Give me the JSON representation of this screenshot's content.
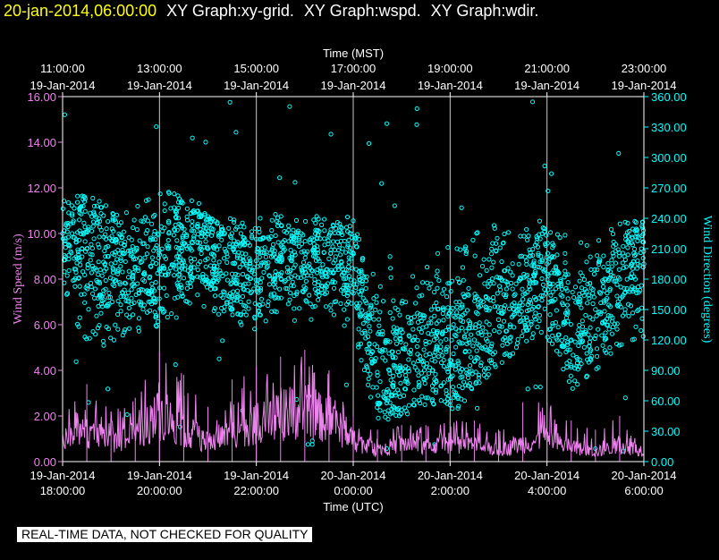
{
  "header": {
    "datetime": "20-jan-2014,06:00:00",
    "titles": [
      "XY Graph:xy-grid.",
      "XY Graph:wspd.",
      "XY Graph:wdir."
    ]
  },
  "notice": "REAL-TIME DATA, NOT CHECKED FOR QUALITY",
  "colors": {
    "background": "#000000",
    "header_date": "#ffff00",
    "header_text": "#ffffff",
    "wind_speed": "#ee82ee",
    "wind_direction": "#00ffff",
    "grid": "#c8c8c8",
    "axes": "#ffffff"
  },
  "chart_data": {
    "type": "scatter",
    "grid": true,
    "top_axis": {
      "title": "Time (MST)",
      "ticks": [
        {
          "time": "11:00:00",
          "date": "19-Jan-2014"
        },
        {
          "time": "13:00:00",
          "date": "19-Jan-2014"
        },
        {
          "time": "15:00:00",
          "date": "19-Jan-2014"
        },
        {
          "time": "17:00:00",
          "date": "19-Jan-2014"
        },
        {
          "time": "19:00:00",
          "date": "19-Jan-2014"
        },
        {
          "time": "21:00:00",
          "date": "19-Jan-2014"
        },
        {
          "time": "23:00:00",
          "date": "19-Jan-2014"
        }
      ]
    },
    "bottom_axis": {
      "title": "Time (UTC)",
      "ticks": [
        {
          "date": "19-Jan-2014",
          "time": "18:00:00"
        },
        {
          "date": "19-Jan-2014",
          "time": "20:00:00"
        },
        {
          "date": "19-Jan-2014",
          "time": "22:00:00"
        },
        {
          "date": "20-Jan-2014",
          "time": "0:00:00"
        },
        {
          "date": "20-Jan-2014",
          "time": "2:00:00"
        },
        {
          "date": "20-Jan-2014",
          "time": "4:00:00"
        },
        {
          "date": "20-Jan-2014",
          "time": "6:00:00"
        }
      ],
      "xlim_utc": [
        "2014-01-19T18:00:00",
        "2014-01-20T06:00:00"
      ]
    },
    "left_axis": {
      "title": "Wind Speed (m/s)",
      "ylim": [
        0,
        16
      ],
      "ticks": [
        "0.00",
        "2.00",
        "4.00",
        "6.00",
        "8.00",
        "10.00",
        "12.00",
        "14.00",
        "16.00"
      ]
    },
    "right_axis": {
      "title": "Wind Direction (degrees)",
      "ylim": [
        0,
        360
      ],
      "ticks": [
        "0.00",
        "30.00",
        "60.00",
        "90.00",
        "120.00",
        "150.00",
        "180.00",
        "210.00",
        "240.00",
        "270.00",
        "300.00",
        "330.00",
        "360.00"
      ]
    },
    "series": [
      {
        "style": "line",
        "axis": "left",
        "x": [
          "2014-01-19T18:00:00",
          "2014-01-19T18:30:00",
          "2014-01-19T19:00:00",
          "2014-01-19T19:30:00",
          "2014-01-19T20:00:00",
          "2014-01-19T20:30:00",
          "2014-01-19T21:00:00",
          "2014-01-19T21:30:00",
          "2014-01-19T22:00:00",
          "2014-01-19T22:30:00",
          "2014-01-19T23:00:00",
          "2014-01-19T23:30:00",
          "2014-01-20T00:00:00",
          "2014-01-20T00:30:00",
          "2014-01-20T01:00:00",
          "2014-01-20T01:30:00",
          "2014-01-20T02:00:00",
          "2014-01-20T02:30:00",
          "2014-01-20T03:00:00",
          "2014-01-20T03:30:00",
          "2014-01-20T04:00:00",
          "2014-01-20T04:30:00",
          "2014-01-20T05:00:00",
          "2014-01-20T05:30:00",
          "2014-01-20T06:00:00"
        ],
        "y": [
          1.2,
          1.6,
          1.1,
          1.4,
          2.6,
          1.8,
          1.0,
          1.6,
          2.0,
          2.4,
          2.8,
          2.2,
          1.2,
          0.6,
          1.0,
          0.8,
          1.0,
          0.9,
          0.6,
          1.0,
          1.2,
          0.8,
          0.5,
          0.9,
          0.6
        ],
        "y_peak": [
          2.6,
          3.4,
          2.2,
          2.8,
          4.8,
          3.8,
          2.4,
          3.6,
          4.2,
          4.6,
          4.9,
          4.0,
          2.0,
          1.4,
          1.6,
          1.6,
          1.8,
          1.8,
          1.4,
          2.6,
          2.6,
          1.8,
          1.4,
          2.0,
          2.4
        ]
      },
      {
        "style": "points",
        "axis": "right",
        "x": [
          "2014-01-19T18:00:00",
          "2014-01-19T18:30:00",
          "2014-01-19T19:00:00",
          "2014-01-19T19:30:00",
          "2014-01-19T20:00:00",
          "2014-01-19T20:30:00",
          "2014-01-19T21:00:00",
          "2014-01-19T21:30:00",
          "2014-01-19T22:00:00",
          "2014-01-19T22:30:00",
          "2014-01-19T23:00:00",
          "2014-01-19T23:30:00",
          "2014-01-20T00:00:00",
          "2014-01-20T00:30:00",
          "2014-01-20T01:00:00",
          "2014-01-20T01:30:00",
          "2014-01-20T02:00:00",
          "2014-01-20T02:30:00",
          "2014-01-20T03:00:00",
          "2014-01-20T03:30:00",
          "2014-01-20T04:00:00",
          "2014-01-20T04:30:00",
          "2014-01-20T05:00:00",
          "2014-01-20T05:30:00",
          "2014-01-20T06:00:00"
        ],
        "y": [
          225,
          210,
          195,
          200,
          190,
          215,
          210,
          185,
          175,
          205,
          190,
          200,
          205,
          85,
          90,
          105,
          100,
          120,
          140,
          160,
          195,
          120,
          150,
          180,
          195
        ],
        "y_min": [
          150,
          120,
          110,
          130,
          120,
          140,
          150,
          135,
          130,
          150,
          145,
          150,
          120,
          40,
          45,
          60,
          55,
          80,
          95,
          110,
          120,
          70,
          90,
          110,
          120
        ],
        "y_max": [
          255,
          270,
          250,
          260,
          265,
          270,
          250,
          240,
          240,
          245,
          240,
          245,
          240,
          175,
          170,
          200,
          215,
          225,
          235,
          240,
          240,
          210,
          220,
          240,
          240
        ]
      }
    ]
  }
}
